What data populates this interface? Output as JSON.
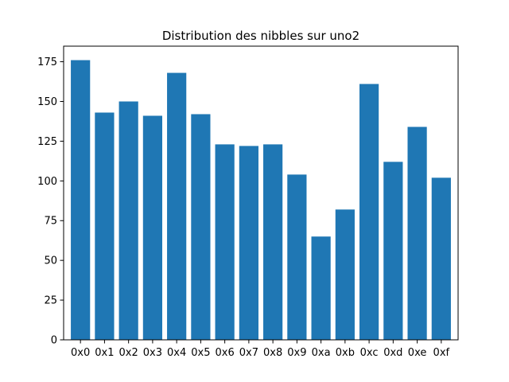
{
  "chart_data": {
    "type": "bar",
    "title": "Distribution des nibbles sur uno2",
    "xlabel": "",
    "ylabel": "",
    "categories": [
      "0x0",
      "0x1",
      "0x2",
      "0x3",
      "0x4",
      "0x5",
      "0x6",
      "0x7",
      "0x8",
      "0x9",
      "0xa",
      "0xb",
      "0xc",
      "0xd",
      "0xe",
      "0xf"
    ],
    "values": [
      176,
      143,
      150,
      141,
      168,
      142,
      123,
      122,
      123,
      104,
      65,
      82,
      161,
      112,
      134,
      102
    ],
    "ylim": [
      0,
      184.8
    ],
    "yticks": [
      0,
      25,
      50,
      75,
      100,
      125,
      150,
      175
    ],
    "grid": false,
    "bar_color": "#1f77b4"
  }
}
